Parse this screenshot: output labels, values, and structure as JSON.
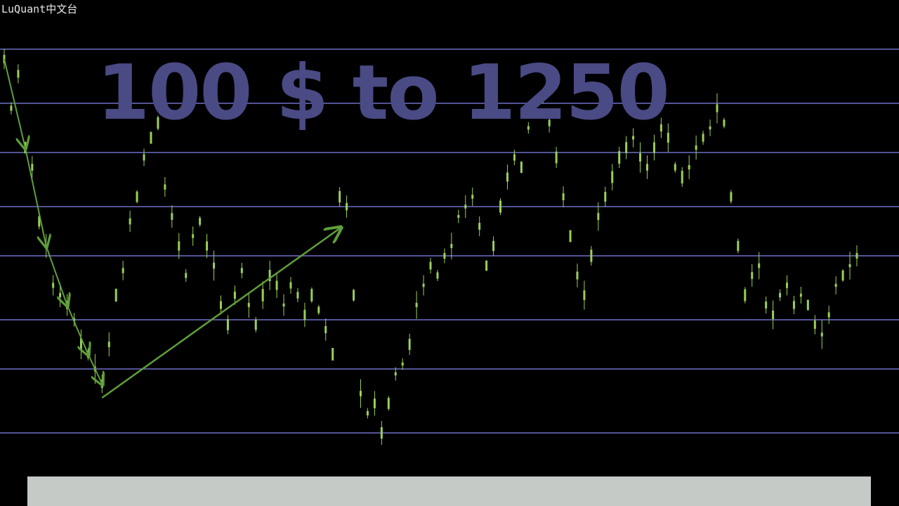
{
  "watermark": "LuQuant中文台",
  "headline": "100 $ to 1250",
  "colors": {
    "background": "#000000",
    "grid_line": "#6f6fc8",
    "candle": "#9bcf5a",
    "annotation": "#5f9f3a",
    "headline": "#4a4a85",
    "bottom_bar": "#c6cac7"
  },
  "chart_data": {
    "type": "line",
    "title": "",
    "xlabel": "",
    "ylabel": "",
    "grid": true,
    "ylim": [
      0,
      100
    ],
    "horizontal_levels": [
      90,
      79,
      69,
      58,
      48,
      35,
      25,
      12
    ],
    "series": [
      {
        "values": [
          88,
          78,
          85,
          70,
          66,
          55,
          50,
          42,
          40,
          38,
          35,
          30,
          28,
          25,
          22,
          30,
          40,
          45,
          55,
          60,
          68,
          72,
          75,
          62,
          56,
          50,
          44,
          52,
          55,
          50,
          46,
          38,
          34,
          40,
          45,
          38,
          34,
          40,
          44,
          42,
          38,
          42,
          40,
          36,
          40,
          37,
          33,
          28,
          60,
          58,
          40,
          20,
          16,
          18,
          12,
          18,
          24,
          26,
          30,
          38,
          42,
          46,
          44,
          48,
          50,
          56,
          58,
          60,
          54,
          46,
          50,
          58,
          64,
          68,
          66,
          74,
          78,
          80,
          75,
          68,
          60,
          52,
          44,
          40,
          48,
          56,
          60,
          64,
          68,
          70,
          72,
          68,
          66,
          70,
          74,
          72,
          66,
          64,
          66,
          70,
          72,
          74,
          78,
          75,
          60,
          50,
          40,
          44,
          46,
          38,
          36,
          40,
          42,
          38,
          40,
          38,
          34,
          32,
          36,
          42,
          44,
          46,
          48
        ]
      }
    ],
    "annotations": [
      {
        "type": "arrows",
        "from_index": 0,
        "to_index": 14
      },
      {
        "type": "arrow",
        "from_index": 14,
        "to_index": 48
      }
    ]
  }
}
